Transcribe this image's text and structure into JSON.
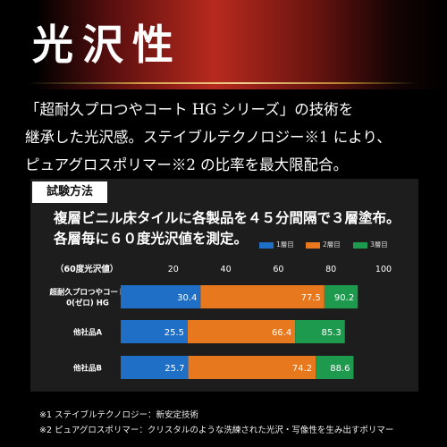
{
  "banner": {
    "title": "光沢性"
  },
  "intro": {
    "lines": [
      "「超耐久プロつやコート HG シリーズ」の技術を",
      "継承した光沢感。ステイブルテクノロジー※1 により、",
      "ピュアグロスポリマー※2 の比率を最大限配合。"
    ]
  },
  "method": {
    "label": "試験方法",
    "desc_lines": [
      "複層ビニル床タイルに各製品を４５分間隔で３層塗布。",
      "各層毎に６０度光沢値を測定。"
    ]
  },
  "chart_data": {
    "type": "bar",
    "stacked": false,
    "orientation": "horizontal",
    "axis_title": "（60度光沢値）",
    "xlim": [
      0,
      100
    ],
    "ticks": [
      "20",
      "40",
      "60",
      "80",
      "100"
    ],
    "categories": [
      "超耐久プロつやコート\n0(ゼロ) HG",
      "他社品A",
      "他社品B"
    ],
    "series": [
      {
        "name": "1層目",
        "color": "#1f6fc6",
        "values": [
          30.4,
          25.5,
          25.7
        ],
        "labels": [
          "30.4",
          "25.5",
          "25.7"
        ]
      },
      {
        "name": "2層目",
        "color": "#e8781e",
        "values": [
          77.5,
          66.4,
          74.2
        ],
        "labels": [
          "77.5",
          "66.4",
          "74.2"
        ]
      },
      {
        "name": "3層目",
        "color": "#1e9a4e",
        "values": [
          90.2,
          85.3,
          88.6
        ],
        "labels": [
          "90.2",
          "85.3",
          "88.6"
        ]
      }
    ],
    "grid": false,
    "legend_position": "top-right"
  },
  "notes": [
    "※1 ステイブルテクノロジー：新安定技術",
    "※2 ピュアグロスポリマー：クリスタルのような洗練された光沢・写像性を生み出すポリマー"
  ]
}
